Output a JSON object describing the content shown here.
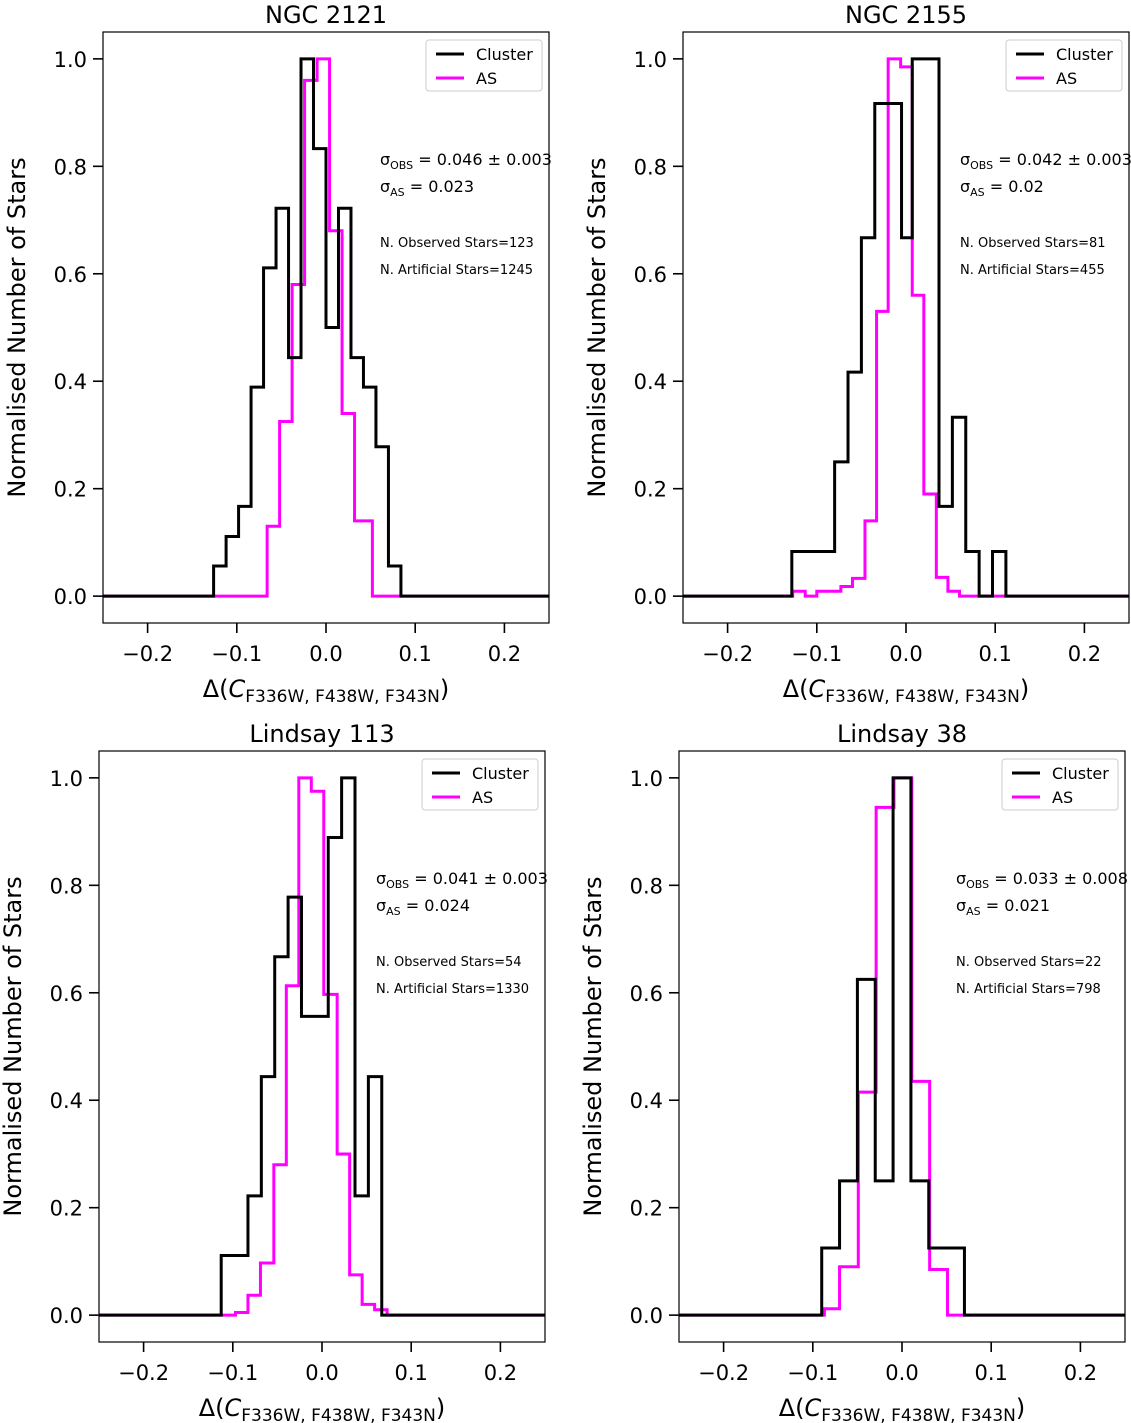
{
  "figure": {
    "xlabel_prefix": "Δ(",
    "xlabel_var": "C",
    "xlabel_sub": "F336W, F438W, F343N",
    "xlabel_suffix": ")",
    "ylabel": "Normalised Number of Stars",
    "sigma_symbol": "σ",
    "sigma_obs_sub": "OBS",
    "sigma_as_sub": "AS",
    "colors": {
      "cluster": "#000000",
      "as": "#ff00ff"
    }
  },
  "chart_data": [
    {
      "type": "line",
      "title": "NGC 2121",
      "xlim": [
        -0.25,
        0.25
      ],
      "ylim": [
        -0.05,
        1.05
      ],
      "xticks": [
        -0.2,
        -0.1,
        0.0,
        0.1,
        0.2
      ],
      "xtick_labels": [
        "−0.2",
        "−0.1",
        "0.0",
        "0.1",
        "0.2"
      ],
      "yticks": [
        0.0,
        0.2,
        0.4,
        0.6,
        0.8,
        1.0
      ],
      "ytick_labels": [
        "0.0",
        "0.2",
        "0.4",
        "0.6",
        "0.8",
        "1.0"
      ],
      "legend": {
        "position": "top-right",
        "entries": [
          "Cluster",
          "AS"
        ]
      },
      "sigma_obs": "0.046 ± 0.003",
      "sigma_as": "0.023",
      "observed_stars_label": "N. Observed Stars=123",
      "artificial_stars_label": "N. Artificial Stars=1245",
      "series": [
        {
          "name": "Cluster",
          "color": "#000000",
          "x": [
            -0.25,
            -0.126,
            -0.126,
            -0.112,
            -0.112,
            -0.098,
            -0.098,
            -0.084,
            -0.084,
            -0.07,
            -0.07,
            -0.056,
            -0.056,
            -0.042,
            -0.042,
            -0.028,
            -0.028,
            -0.014,
            -0.014,
            0.0,
            0.0,
            0.014,
            0.014,
            0.028,
            0.028,
            0.042,
            0.042,
            0.056,
            0.056,
            0.07,
            0.07,
            0.084,
            0.084,
            0.112,
            0.112,
            0.25
          ],
          "y": [
            0,
            0,
            0.056,
            0.056,
            0.111,
            0.111,
            0.167,
            0.167,
            0.389,
            0.389,
            0.611,
            0.611,
            0.722,
            0.722,
            0.444,
            0.444,
            1.0,
            1.0,
            0.833,
            0.833,
            0.5,
            0.5,
            0.722,
            0.722,
            0.444,
            0.444,
            0.389,
            0.389,
            0.278,
            0.278,
            0.056,
            0.056,
            0,
            0,
            0,
            0
          ]
        },
        {
          "name": "AS",
          "color": "#ff00ff",
          "x": [
            -0.25,
            -0.066,
            -0.066,
            -0.052,
            -0.052,
            -0.038,
            -0.038,
            -0.024,
            -0.024,
            -0.01,
            -0.01,
            0.004,
            0.004,
            0.018,
            0.018,
            0.032,
            0.032,
            0.052,
            0.052,
            0.25
          ],
          "y": [
            0,
            0,
            0.13,
            0.13,
            0.325,
            0.325,
            0.58,
            0.58,
            0.96,
            0.96,
            1.0,
            1.0,
            0.68,
            0.68,
            0.34,
            0.34,
            0.14,
            0.14,
            0,
            0
          ]
        }
      ]
    },
    {
      "type": "line",
      "title": "NGC 2155",
      "xlim": [
        -0.25,
        0.25
      ],
      "ylim": [
        -0.05,
        1.05
      ],
      "xticks": [
        -0.2,
        -0.1,
        0.0,
        0.1,
        0.2
      ],
      "xtick_labels": [
        "−0.2",
        "−0.1",
        "0.0",
        "0.1",
        "0.2"
      ],
      "yticks": [
        0.0,
        0.2,
        0.4,
        0.6,
        0.8,
        1.0
      ],
      "ytick_labels": [
        "0.0",
        "0.2",
        "0.4",
        "0.6",
        "0.8",
        "1.0"
      ],
      "legend": {
        "position": "top-right",
        "entries": [
          "Cluster",
          "AS"
        ]
      },
      "sigma_obs": "0.042 ± 0.003",
      "sigma_as": "0.02",
      "observed_stars_label": "N. Observed Stars=81",
      "artificial_stars_label": "N. Artificial Stars=455",
      "series": [
        {
          "name": "Cluster",
          "color": "#000000",
          "x": [
            -0.25,
            -0.128,
            -0.128,
            -0.08,
            -0.08,
            -0.065,
            -0.065,
            -0.05,
            -0.05,
            -0.035,
            -0.035,
            -0.005,
            -0.005,
            0.007,
            0.007,
            0.037,
            0.037,
            0.052,
            0.052,
            0.067,
            0.067,
            0.082,
            0.082,
            0.097,
            0.097,
            0.112,
            0.112,
            0.25
          ],
          "y": [
            0,
            0,
            0.083,
            0.083,
            0.25,
            0.25,
            0.417,
            0.417,
            0.667,
            0.667,
            0.917,
            0.917,
            0.667,
            0.667,
            1.0,
            1.0,
            0.167,
            0.167,
            0.333,
            0.333,
            0.083,
            0.083,
            0,
            0,
            0.083,
            0.083,
            0,
            0
          ]
        },
        {
          "name": "AS",
          "color": "#ff00ff",
          "x": [
            -0.25,
            -0.127,
            -0.127,
            -0.113,
            -0.113,
            -0.1,
            -0.1,
            -0.087,
            -0.087,
            -0.073,
            -0.073,
            -0.06,
            -0.06,
            -0.046,
            -0.046,
            -0.033,
            -0.033,
            -0.02,
            -0.02,
            -0.006,
            -0.006,
            0.007,
            0.007,
            0.02,
            0.02,
            0.034,
            0.034,
            0.047,
            0.047,
            0.06,
            0.06,
            0.25
          ],
          "y": [
            0,
            0,
            0.009,
            0.009,
            0,
            0,
            0.009,
            0.009,
            0.009,
            0.009,
            0.018,
            0.018,
            0.033,
            0.033,
            0.14,
            0.14,
            0.53,
            0.53,
            1.0,
            1.0,
            0.985,
            0.985,
            0.56,
            0.56,
            0.19,
            0.19,
            0.035,
            0.035,
            0.009,
            0.009,
            0,
            0
          ]
        }
      ]
    },
    {
      "type": "line",
      "title": "Lindsay 113",
      "xlim": [
        -0.25,
        0.25
      ],
      "ylim": [
        -0.05,
        1.05
      ],
      "xticks": [
        -0.2,
        -0.1,
        0.0,
        0.1,
        0.2
      ],
      "xtick_labels": [
        "−0.2",
        "−0.1",
        "0.0",
        "0.1",
        "0.2"
      ],
      "yticks": [
        0.0,
        0.2,
        0.4,
        0.6,
        0.8,
        1.0
      ],
      "ytick_labels": [
        "0.0",
        "0.2",
        "0.4",
        "0.6",
        "0.8",
        "1.0"
      ],
      "legend": {
        "position": "top-right",
        "entries": [
          "Cluster",
          "AS"
        ]
      },
      "sigma_obs": "0.041 ± 0.003",
      "sigma_as": "0.024",
      "observed_stars_label": "N. Observed Stars=54",
      "artificial_stars_label": "N. Artificial Stars=1330",
      "series": [
        {
          "name": "Cluster",
          "color": "#000000",
          "x": [
            -0.25,
            -0.113,
            -0.113,
            -0.083,
            -0.083,
            -0.068,
            -0.068,
            -0.053,
            -0.053,
            -0.038,
            -0.038,
            -0.023,
            -0.023,
            0.007,
            0.007,
            0.022,
            0.022,
            0.037,
            0.037,
            0.052,
            0.052,
            0.067,
            0.067,
            0.082,
            0.082,
            0.25
          ],
          "y": [
            0,
            0,
            0.111,
            0.111,
            0.222,
            0.222,
            0.444,
            0.444,
            0.667,
            0.667,
            0.778,
            0.778,
            0.556,
            0.556,
            0.889,
            0.889,
            1.0,
            1.0,
            0.222,
            0.222,
            0.444,
            0.444,
            0,
            0,
            0,
            0
          ]
        },
        {
          "name": "AS",
          "color": "#ff00ff",
          "x": [
            -0.25,
            -0.097,
            -0.097,
            -0.083,
            -0.083,
            -0.069,
            -0.069,
            -0.054,
            -0.054,
            -0.04,
            -0.04,
            -0.026,
            -0.026,
            -0.012,
            -0.012,
            0.002,
            0.002,
            0.017,
            0.017,
            0.031,
            0.031,
            0.045,
            0.045,
            0.059,
            0.059,
            0.073,
            0.073,
            0.25
          ],
          "y": [
            0,
            0,
            0.005,
            0.005,
            0.037,
            0.037,
            0.097,
            0.097,
            0.28,
            0.28,
            0.613,
            0.613,
            1.0,
            1.0,
            0.975,
            0.975,
            0.597,
            0.597,
            0.3,
            0.3,
            0.075,
            0.075,
            0.02,
            0.02,
            0.01,
            0.01,
            0,
            0
          ]
        }
      ]
    },
    {
      "type": "line",
      "title": "Lindsay 38",
      "xlim": [
        -0.25,
        0.25
      ],
      "ylim": [
        -0.05,
        1.05
      ],
      "xticks": [
        -0.2,
        -0.1,
        0.0,
        0.1,
        0.2
      ],
      "xtick_labels": [
        "−0.2",
        "−0.1",
        "0.0",
        "0.1",
        "0.2"
      ],
      "yticks": [
        0.0,
        0.2,
        0.4,
        0.6,
        0.8,
        1.0
      ],
      "ytick_labels": [
        "0.0",
        "0.2",
        "0.4",
        "0.6",
        "0.8",
        "1.0"
      ],
      "legend": {
        "position": "top-right",
        "entries": [
          "Cluster",
          "AS"
        ]
      },
      "sigma_obs": "0.033 ± 0.008",
      "sigma_as": "0.021",
      "observed_stars_label": "N. Observed Stars=22",
      "artificial_stars_label": "N. Artificial Stars=798",
      "series": [
        {
          "name": "Cluster",
          "color": "#000000",
          "x": [
            -0.25,
            -0.09,
            -0.09,
            -0.07,
            -0.07,
            -0.05,
            -0.05,
            -0.03,
            -0.03,
            -0.01,
            -0.01,
            0.01,
            0.01,
            0.03,
            0.03,
            0.07,
            0.07,
            0.25
          ],
          "y": [
            0,
            0,
            0.125,
            0.125,
            0.25,
            0.25,
            0.625,
            0.625,
            0.25,
            0.25,
            1.0,
            1.0,
            0.25,
            0.25,
            0.125,
            0.125,
            0,
            0
          ]
        },
        {
          "name": "AS",
          "color": "#ff00ff",
          "x": [
            -0.25,
            -0.087,
            -0.087,
            -0.07,
            -0.07,
            -0.049,
            -0.049,
            -0.029,
            -0.029,
            -0.009,
            -0.009,
            0.011,
            0.011,
            0.031,
            0.031,
            0.051,
            0.051,
            0.25
          ],
          "y": [
            0,
            0,
            0.012,
            0.012,
            0.09,
            0.09,
            0.415,
            0.415,
            0.945,
            0.945,
            1.0,
            1.0,
            0.435,
            0.435,
            0.085,
            0.085,
            0,
            0
          ]
        }
      ]
    }
  ]
}
